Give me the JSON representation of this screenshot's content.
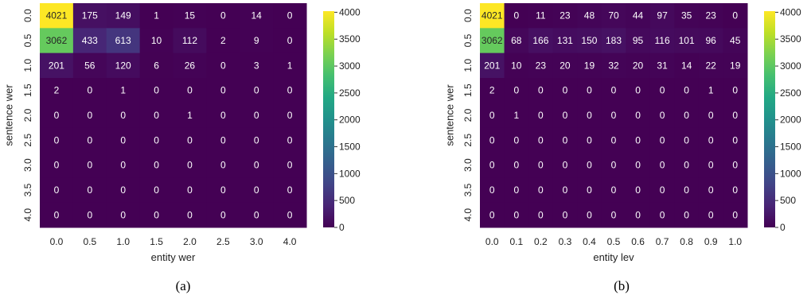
{
  "chart_data": [
    {
      "type": "heatmap",
      "caption": "(a)",
      "xlabel": "entity wer",
      "ylabel": "sentence wer",
      "x_categories": [
        "0.0",
        "0.5",
        "1.0",
        "1.5",
        "2.0",
        "2.5",
        "3.0",
        "4.0"
      ],
      "y_categories": [
        "0.0",
        "0.5",
        "1.0",
        "1.5",
        "2.0",
        "2.5",
        "3.0",
        "3.5",
        "4.0"
      ],
      "values": [
        [
          4021,
          175,
          149,
          1,
          15,
          0,
          14,
          0
        ],
        [
          3062,
          433,
          613,
          10,
          112,
          2,
          9,
          0
        ],
        [
          201,
          56,
          120,
          6,
          26,
          0,
          3,
          1
        ],
        [
          2,
          0,
          1,
          0,
          0,
          0,
          0,
          0
        ],
        [
          0,
          0,
          0,
          0,
          1,
          0,
          0,
          0
        ],
        [
          0,
          0,
          0,
          0,
          0,
          0,
          0,
          0
        ],
        [
          0,
          0,
          0,
          0,
          0,
          0,
          0,
          0
        ],
        [
          0,
          0,
          0,
          0,
          0,
          0,
          0,
          0
        ],
        [
          0,
          0,
          0,
          0,
          0,
          0,
          0,
          0
        ]
      ],
      "colorbar": {
        "colormap": "viridis",
        "range": [
          0,
          4021
        ],
        "ticks": [
          0,
          500,
          1000,
          1500,
          2000,
          2500,
          3000,
          3500,
          4000
        ]
      }
    },
    {
      "type": "heatmap",
      "caption": "(b)",
      "xlabel": "entity lev",
      "ylabel": "sentence wer",
      "x_categories": [
        "0.0",
        "0.1",
        "0.2",
        "0.3",
        "0.4",
        "0.5",
        "0.6",
        "0.7",
        "0.8",
        "0.9",
        "1.0"
      ],
      "y_categories": [
        "0.0",
        "0.5",
        "1.0",
        "1.5",
        "2.0",
        "2.5",
        "3.0",
        "3.5",
        "4.0"
      ],
      "values": [
        [
          4021,
          0,
          11,
          23,
          48,
          70,
          44,
          97,
          35,
          23,
          0
        ],
        [
          3062,
          68,
          166,
          131,
          150,
          183,
          95,
          116,
          101,
          96,
          45
        ],
        [
          201,
          10,
          23,
          20,
          19,
          32,
          20,
          31,
          14,
          22,
          19
        ],
        [
          2,
          0,
          0,
          0,
          0,
          0,
          0,
          0,
          0,
          1,
          0
        ],
        [
          0,
          1,
          0,
          0,
          0,
          0,
          0,
          0,
          0,
          0,
          0
        ],
        [
          0,
          0,
          0,
          0,
          0,
          0,
          0,
          0,
          0,
          0,
          0
        ],
        [
          0,
          0,
          0,
          0,
          0,
          0,
          0,
          0,
          0,
          0,
          0
        ],
        [
          0,
          0,
          0,
          0,
          0,
          0,
          0,
          0,
          0,
          0,
          0
        ],
        [
          0,
          0,
          0,
          0,
          0,
          0,
          0,
          0,
          0,
          0,
          0
        ]
      ],
      "colorbar": {
        "colormap": "viridis",
        "range": [
          0,
          4021
        ],
        "ticks": [
          0,
          500,
          1000,
          1500,
          2000,
          2500,
          3000,
          3500,
          4000
        ]
      }
    }
  ]
}
